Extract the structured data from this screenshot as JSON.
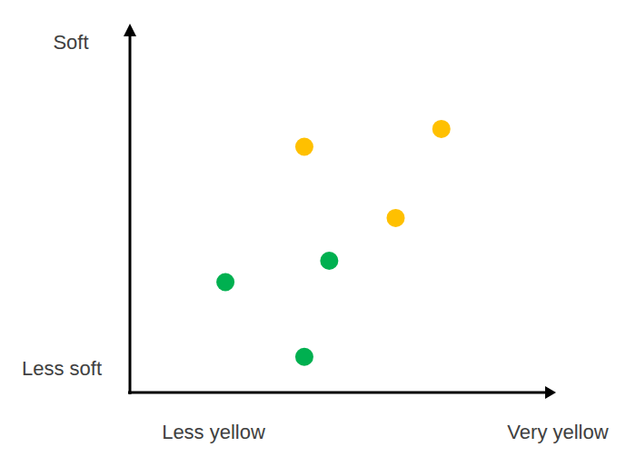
{
  "chart_data": {
    "type": "scatter",
    "x_label": {
      "left": "Less yellow",
      "right": "Very yellow"
    },
    "y_label": {
      "top": "Soft",
      "bottom": "Less soft"
    },
    "xlim": [
      0,
      10
    ],
    "ylim": [
      0,
      10
    ],
    "tick_labels": false,
    "grid": false,
    "marker": "circle",
    "series": [
      {
        "color": "#ffc000",
        "x": [
          4.2,
          7.5,
          6.4
        ],
        "values": [
          6.9,
          7.4,
          4.9
        ]
      },
      {
        "color": "#00b050",
        "x": [
          2.3,
          4.8,
          4.2
        ],
        "values": [
          3.1,
          3.7,
          1.0
        ]
      }
    ]
  }
}
